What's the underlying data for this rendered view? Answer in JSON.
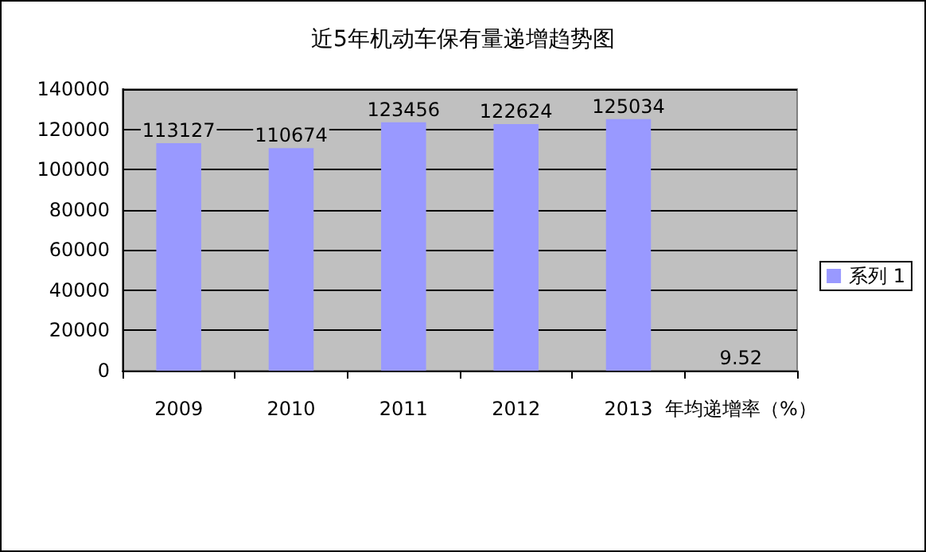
{
  "chart_data": {
    "type": "bar",
    "title": "近5年机动车保有量递增趋势图",
    "categories": [
      "2009",
      "2010",
      "2011",
      "2012",
      "2013",
      "年均递增率（%）"
    ],
    "series": [
      {
        "name": "系列 1",
        "color": "#9999ff",
        "values": [
          113127,
          110674,
          123456,
          122624,
          125034,
          9.52
        ]
      }
    ],
    "ylim": [
      0,
      140000
    ],
    "yticks": [
      0,
      20000,
      40000,
      60000,
      80000,
      100000,
      120000,
      140000
    ],
    "grid": "y",
    "legend": "right",
    "data_labels": true
  }
}
